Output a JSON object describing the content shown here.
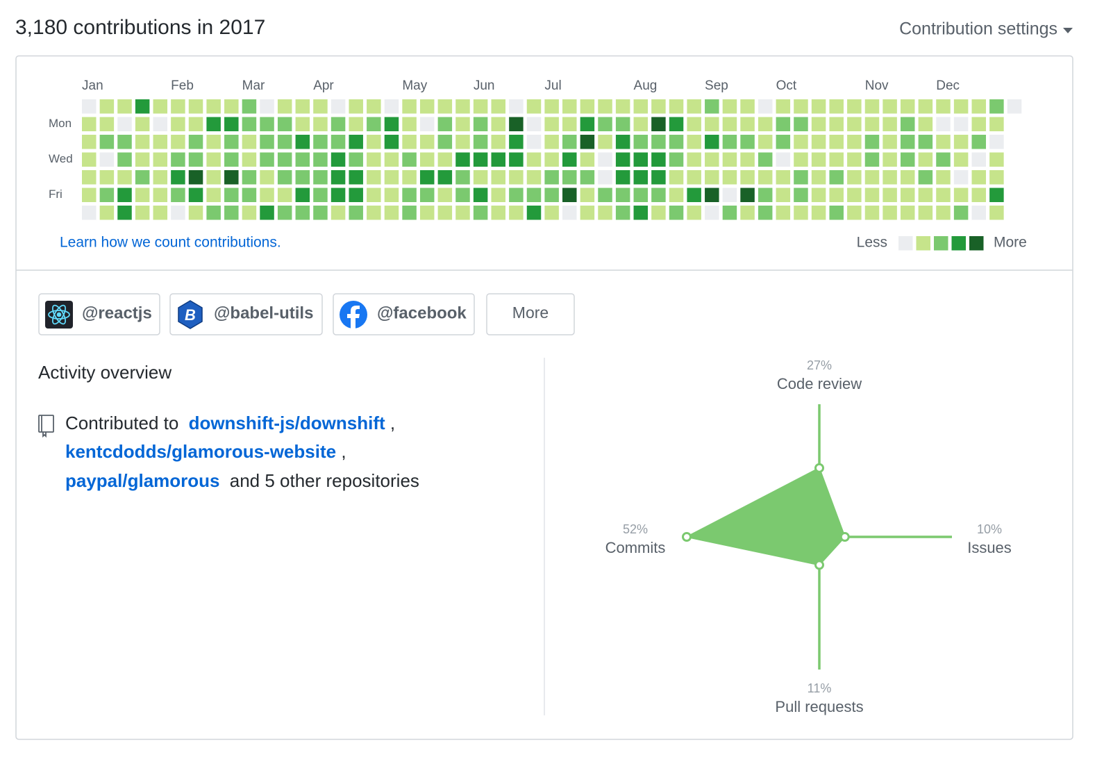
{
  "header": {
    "title": "3,180 contributions in 2017",
    "settings": "Contribution settings"
  },
  "calendar": {
    "months": [
      "Jan",
      "Feb",
      "Mar",
      "Apr",
      "May",
      "Jun",
      "Jul",
      "Aug",
      "Sep",
      "Oct",
      "Nov",
      "Dec"
    ],
    "days": [
      "Mon",
      "Wed",
      "Fri"
    ],
    "colors": [
      "#ebedf0",
      "#c6e48b",
      "#7bc96f",
      "#239a3b",
      "#196127"
    ],
    "levels": [
      [
        0,
        1,
        1,
        3,
        1,
        1,
        1,
        1,
        1,
        2,
        0,
        1,
        1,
        1,
        0,
        1,
        1,
        0,
        1,
        1,
        1,
        1,
        1,
        1,
        0,
        1,
        1,
        1,
        1,
        1,
        1,
        1,
        1,
        1,
        1,
        2,
        1,
        1,
        0,
        1,
        1,
        1,
        1,
        1,
        1,
        1,
        1,
        1,
        1,
        1,
        1,
        2,
        0
      ],
      [
        1,
        1,
        0,
        1,
        0,
        1,
        1,
        3,
        3,
        2,
        2,
        2,
        1,
        1,
        2,
        1,
        2,
        3,
        1,
        0,
        2,
        1,
        2,
        1,
        4,
        0,
        1,
        1,
        3,
        2,
        2,
        1,
        4,
        3,
        1,
        1,
        1,
        1,
        1,
        2,
        2,
        1,
        1,
        1,
        1,
        1,
        2,
        1,
        0,
        0,
        1,
        1,
        null
      ],
      [
        1,
        2,
        2,
        1,
        1,
        1,
        2,
        1,
        2,
        1,
        2,
        2,
        3,
        2,
        2,
        3,
        1,
        3,
        1,
        1,
        2,
        1,
        2,
        1,
        3,
        0,
        1,
        2,
        4,
        1,
        3,
        2,
        2,
        2,
        1,
        3,
        2,
        2,
        1,
        2,
        1,
        1,
        1,
        1,
        2,
        1,
        2,
        2,
        1,
        1,
        2,
        0,
        null
      ],
      [
        1,
        0,
        2,
        1,
        1,
        2,
        2,
        1,
        2,
        1,
        2,
        2,
        2,
        2,
        3,
        2,
        1,
        1,
        2,
        1,
        1,
        3,
        3,
        3,
        3,
        1,
        1,
        3,
        1,
        0,
        3,
        3,
        3,
        2,
        1,
        1,
        1,
        1,
        2,
        0,
        1,
        1,
        1,
        1,
        2,
        1,
        2,
        1,
        2,
        1,
        0,
        1,
        null
      ],
      [
        1,
        1,
        1,
        2,
        1,
        3,
        4,
        1,
        4,
        2,
        1,
        2,
        2,
        2,
        3,
        3,
        1,
        1,
        1,
        3,
        3,
        2,
        1,
        1,
        1,
        1,
        2,
        2,
        2,
        0,
        3,
        3,
        3,
        1,
        1,
        1,
        1,
        1,
        1,
        1,
        2,
        1,
        2,
        1,
        1,
        1,
        1,
        2,
        1,
        0,
        1,
        1,
        null
      ],
      [
        1,
        2,
        3,
        1,
        1,
        2,
        3,
        1,
        2,
        2,
        1,
        1,
        3,
        2,
        3,
        3,
        1,
        1,
        2,
        2,
        1,
        2,
        3,
        1,
        2,
        2,
        2,
        4,
        1,
        2,
        2,
        2,
        2,
        1,
        3,
        4,
        0,
        4,
        2,
        1,
        2,
        1,
        1,
        1,
        1,
        1,
        1,
        1,
        1,
        1,
        1,
        3,
        null
      ],
      [
        0,
        1,
        3,
        1,
        1,
        0,
        1,
        2,
        2,
        1,
        3,
        2,
        2,
        2,
        1,
        2,
        1,
        1,
        2,
        1,
        1,
        1,
        2,
        1,
        1,
        3,
        1,
        0,
        1,
        1,
        2,
        3,
        1,
        2,
        1,
        0,
        2,
        1,
        2,
        1,
        1,
        1,
        2,
        1,
        1,
        1,
        1,
        1,
        1,
        2,
        0,
        1,
        null
      ]
    ],
    "link": "Learn how we count contributions.",
    "legend_less": "Less",
    "legend_more": "More"
  },
  "orgs": [
    "@reactjs",
    "@babel-utils",
    "@facebook"
  ],
  "more_button": "More",
  "activity": {
    "title": "Activity overview",
    "prefix": "Contributed to",
    "repos": [
      "downshift-js/downshift",
      "kentcdodds/glamorous-website",
      "paypal/glamorous"
    ],
    "separator": ",",
    "suffix": "and 5 other repositories"
  },
  "chart_data": {
    "type": "radar",
    "categories": [
      "Code review",
      "Issues",
      "Pull requests",
      "Commits"
    ],
    "values": [
      27,
      10,
      11,
      52
    ],
    "value_labels": [
      "27%",
      "10%",
      "11%",
      "52%"
    ],
    "color": "#7bc96f"
  }
}
